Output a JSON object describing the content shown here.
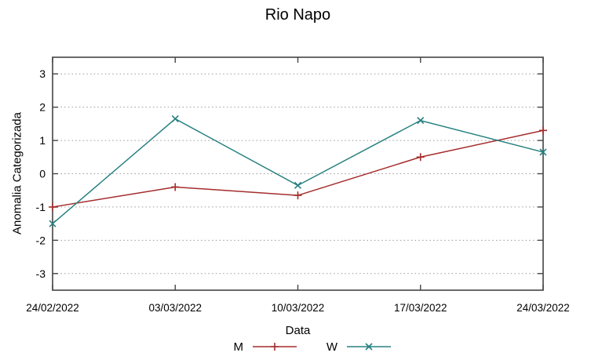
{
  "chart_data": {
    "type": "line",
    "title": "Rio Napo",
    "xlabel": "Data",
    "ylabel": "Anomalia Categorizada",
    "categories": [
      "24/02/2022",
      "03/03/2022",
      "10/03/2022",
      "17/03/2022",
      "24/03/2022"
    ],
    "series": [
      {
        "name": "M",
        "color": "#a52c2c",
        "marker": "plus",
        "values": [
          -1.0,
          -0.4,
          -0.65,
          0.5,
          1.3
        ]
      },
      {
        "name": "W",
        "color": "#278080",
        "marker": "cross",
        "values": [
          -1.5,
          1.65,
          -0.35,
          1.6,
          0.65
        ]
      }
    ],
    "ylim": [
      -3.5,
      3.5
    ],
    "yticks": [
      -3,
      -2,
      -1,
      0,
      1,
      2,
      3
    ],
    "grid": "horizontal-dotted",
    "legend_position": "bottom-center",
    "colors": {
      "grid": "#9a9a9a",
      "border": "#444444",
      "text": "#000000",
      "background": "#ffffff"
    }
  }
}
